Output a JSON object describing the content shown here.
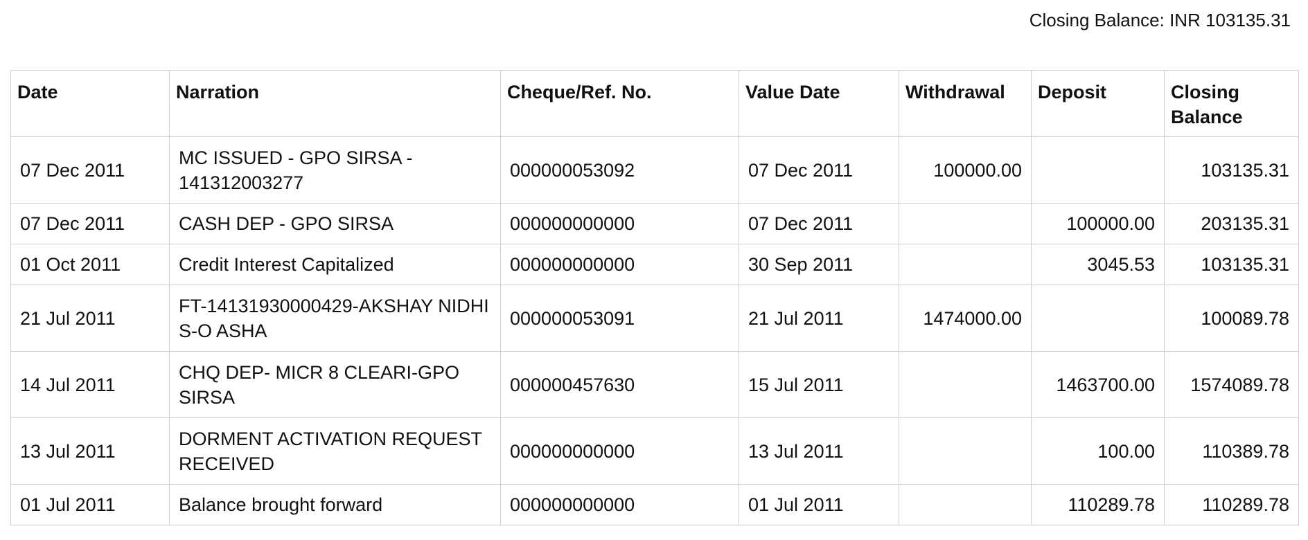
{
  "summary": {
    "closing_balance_text": "Closing Balance: INR 103135.31"
  },
  "table": {
    "headers": {
      "date": "Date",
      "narration": "Narration",
      "cheque_ref_no": "Cheque/Ref. No.",
      "value_date": "Value Date",
      "withdrawal": "Withdrawal",
      "deposit": "Deposit",
      "closing_balance": "Closing Balance"
    },
    "rows": [
      {
        "date": "07 Dec 2011",
        "narration": "MC ISSUED - GPO SIRSA - 141312003277",
        "cheque_ref_no": "000000053092",
        "value_date": "07 Dec 2011",
        "withdrawal": "100000.00",
        "deposit": "",
        "closing_balance": "103135.31"
      },
      {
        "date": "07 Dec 2011",
        "narration": "CASH DEP - GPO SIRSA",
        "cheque_ref_no": "000000000000",
        "value_date": "07 Dec 2011",
        "withdrawal": "",
        "deposit": "100000.00",
        "closing_balance": "203135.31"
      },
      {
        "date": "01 Oct 2011",
        "narration": "Credit Interest Capitalized",
        "cheque_ref_no": "000000000000",
        "value_date": "30 Sep 2011",
        "withdrawal": "",
        "deposit": "3045.53",
        "closing_balance": "103135.31"
      },
      {
        "date": "21 Jul 2011",
        "narration": "FT-14131930000429-AKSHAY NIDHI S-O ASHA",
        "cheque_ref_no": "000000053091",
        "value_date": "21 Jul 2011",
        "withdrawal": "1474000.00",
        "deposit": "",
        "closing_balance": "100089.78"
      },
      {
        "date": "14 Jul 2011",
        "narration": "CHQ DEP- MICR 8 CLEARI-GPO SIRSA",
        "cheque_ref_no": "000000457630",
        "value_date": "15 Jul 2011",
        "withdrawal": "",
        "deposit": "1463700.00",
        "closing_balance": "1574089.78"
      },
      {
        "date": "13 Jul 2011",
        "narration": "DORMENT ACTIVATION REQUEST RECEIVED",
        "cheque_ref_no": "000000000000",
        "value_date": "13 Jul 2011",
        "withdrawal": "",
        "deposit": "100.00",
        "closing_balance": "110389.78"
      },
      {
        "date": "01 Jul 2011",
        "narration": "Balance brought forward",
        "cheque_ref_no": "000000000000",
        "value_date": "01 Jul 2011",
        "withdrawal": "",
        "deposit": "110289.78",
        "closing_balance": "110289.78"
      }
    ]
  }
}
